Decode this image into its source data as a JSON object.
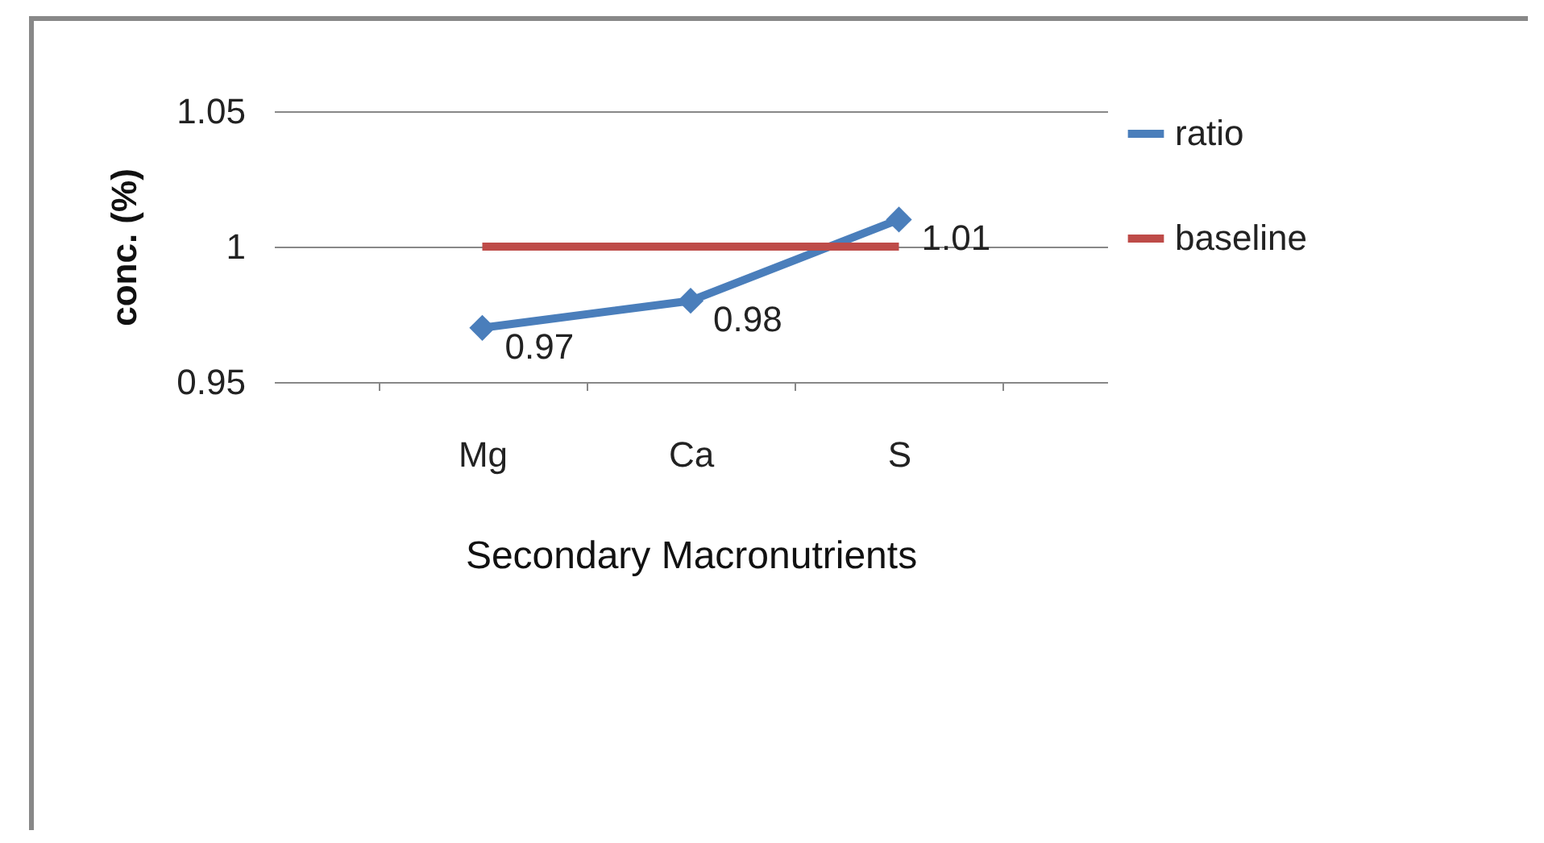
{
  "chart_data": {
    "type": "line",
    "xlabel": "Secondary Macronutrients",
    "ylabel": "conc. (%)",
    "categories": [
      "Mg",
      "Ca",
      "S"
    ],
    "series": [
      {
        "name": "ratio",
        "color": "#4a7ebb",
        "values": [
          0.97,
          0.98,
          1.01
        ],
        "marker": "diamond",
        "value_labels": [
          "0.97",
          "0.98",
          "1.01"
        ]
      },
      {
        "name": "baseline",
        "color": "#be4b48",
        "values": [
          1,
          1,
          1
        ]
      }
    ],
    "ylim": [
      0.95,
      1.05
    ],
    "yticks": [
      0.95,
      1,
      1.05
    ],
    "grid": "y",
    "legend": "right"
  }
}
